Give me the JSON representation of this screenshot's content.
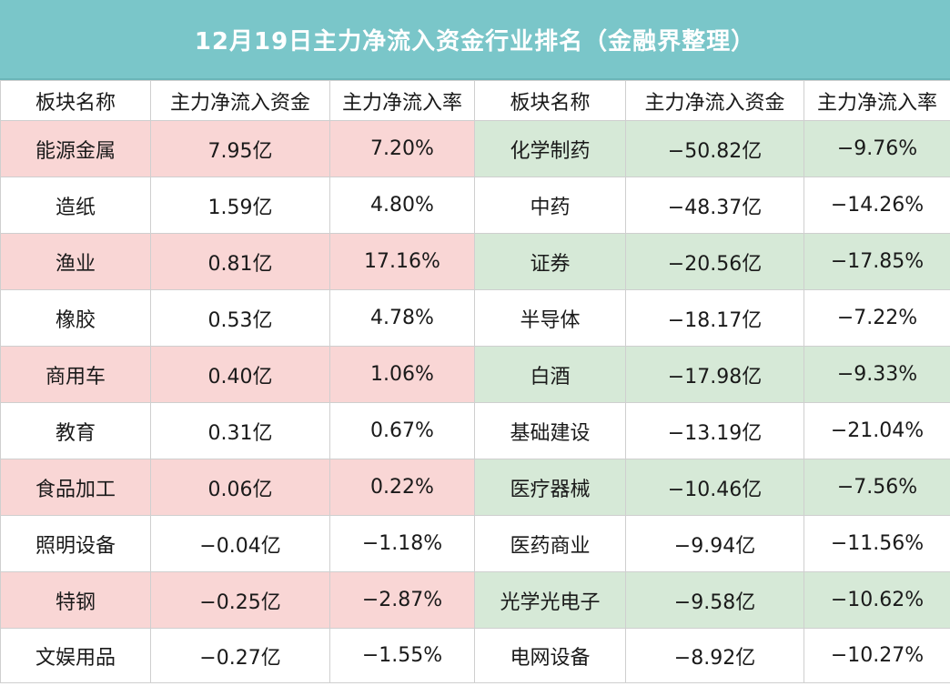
{
  "title": "12月19日主力净流入资金行业排名（金融界整理）",
  "headers": [
    "板块名称",
    "主力净流入资金",
    "主力净流入率",
    "板块名称",
    "主力净流入资金",
    "主力净流入率"
  ],
  "colors": {
    "title_bg": "#7ac6c9",
    "inflow_highlight": "#f9d6d5",
    "outflow_highlight": "#d6e9d7"
  },
  "rows": [
    {
      "left": {
        "name": "能源金属",
        "amount": "7.95亿",
        "rate": "7.20%",
        "highlight": true
      },
      "right": {
        "name": "化学制药",
        "amount": "−50.82亿",
        "rate": "−9.76%",
        "highlight": true
      }
    },
    {
      "left": {
        "name": "造纸",
        "amount": "1.59亿",
        "rate": "4.80%",
        "highlight": false
      },
      "right": {
        "name": "中药",
        "amount": "−48.37亿",
        "rate": "−14.26%",
        "highlight": false
      }
    },
    {
      "left": {
        "name": "渔业",
        "amount": "0.81亿",
        "rate": "17.16%",
        "highlight": true
      },
      "right": {
        "name": "证券",
        "amount": "−20.56亿",
        "rate": "−17.85%",
        "highlight": true
      }
    },
    {
      "left": {
        "name": "橡胶",
        "amount": "0.53亿",
        "rate": "4.78%",
        "highlight": false
      },
      "right": {
        "name": "半导体",
        "amount": "−18.17亿",
        "rate": "−7.22%",
        "highlight": false
      }
    },
    {
      "left": {
        "name": "商用车",
        "amount": "0.40亿",
        "rate": "1.06%",
        "highlight": true
      },
      "right": {
        "name": "白酒",
        "amount": "−17.98亿",
        "rate": "−9.33%",
        "highlight": true
      }
    },
    {
      "left": {
        "name": "教育",
        "amount": "0.31亿",
        "rate": "0.67%",
        "highlight": false
      },
      "right": {
        "name": "基础建设",
        "amount": "−13.19亿",
        "rate": "−21.04%",
        "highlight": false
      }
    },
    {
      "left": {
        "name": "食品加工",
        "amount": "0.06亿",
        "rate": "0.22%",
        "highlight": true
      },
      "right": {
        "name": "医疗器械",
        "amount": "−10.46亿",
        "rate": "−7.56%",
        "highlight": true
      }
    },
    {
      "left": {
        "name": "照明设备",
        "amount": "−0.04亿",
        "rate": "−1.18%",
        "highlight": false
      },
      "right": {
        "name": "医药商业",
        "amount": "−9.94亿",
        "rate": "−11.56%",
        "highlight": false
      }
    },
    {
      "left": {
        "name": "特钢",
        "amount": "−0.25亿",
        "rate": "−2.87%",
        "highlight": true
      },
      "right": {
        "name": "光学光电子",
        "amount": "−9.58亿",
        "rate": "−10.62%",
        "highlight": true
      }
    },
    {
      "left": {
        "name": "文娱用品",
        "amount": "−0.27亿",
        "rate": "−1.55%",
        "highlight": false
      },
      "right": {
        "name": "电网设备",
        "amount": "−8.92亿",
        "rate": "−10.27%",
        "highlight": false
      }
    }
  ]
}
